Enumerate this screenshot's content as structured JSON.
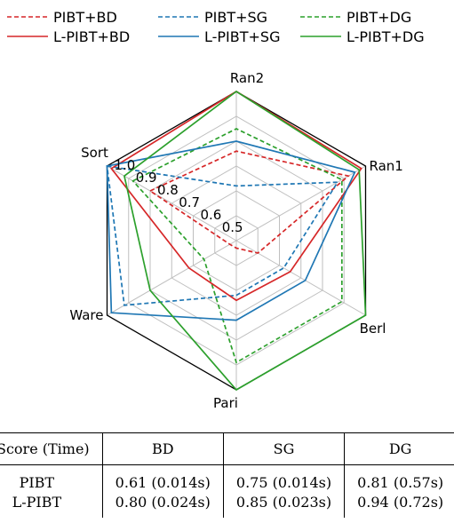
{
  "chart_data": {
    "type": "radar",
    "axes": [
      "Sort",
      "Ran2",
      "Ran1",
      "Berl",
      "Pari",
      "Ware"
    ],
    "r_ticks": [
      "0.5",
      "0.6",
      "0.7",
      "0.8",
      "0.9",
      "1.0"
    ],
    "r_range": [
      0.4,
      1.0
    ],
    "grid": true,
    "legend": "top",
    "series": [
      {
        "name": "PIBT+BD",
        "color": "#d62728",
        "style": "dashed",
        "values": [
          0.8,
          0.76,
          0.92,
          0.5,
          0.43,
          0.43
        ]
      },
      {
        "name": "PIBT+SG",
        "color": "#1f77b4",
        "style": "dashed",
        "values": [
          1.0,
          0.62,
          0.87,
          0.62,
          0.62,
          0.92
        ]
      },
      {
        "name": "PIBT+DG",
        "color": "#2ca02c",
        "style": "dashed",
        "values": [
          0.88,
          0.85,
          0.89,
          0.89,
          0.89,
          0.55
        ]
      },
      {
        "name": "L-PIBT+BD",
        "color": "#d62728",
        "style": "solid",
        "values": [
          0.98,
          1.0,
          0.98,
          0.65,
          0.64,
          0.62
        ]
      },
      {
        "name": "L-PIBT+SG",
        "color": "#1f77b4",
        "style": "solid",
        "values": [
          1.0,
          0.8,
          0.95,
          0.72,
          0.72,
          0.98
        ]
      },
      {
        "name": "L-PIBT+DG",
        "color": "#2ca02c",
        "style": "solid",
        "values": [
          0.92,
          1.0,
          0.97,
          1.0,
          1.0,
          0.8
        ]
      }
    ]
  },
  "table": {
    "headers": [
      "Score (Time)",
      "BD",
      "SG",
      "DG"
    ],
    "rows": [
      {
        "label": "PIBT",
        "cells": [
          "0.61 (0.014s)",
          "0.75 (0.014s)",
          "0.81 (0.57s)"
        ]
      },
      {
        "label": "L-PIBT",
        "cells": [
          "0.80 (0.024s)",
          "0.85 (0.023s)",
          "0.94 (0.72s)"
        ]
      }
    ]
  }
}
